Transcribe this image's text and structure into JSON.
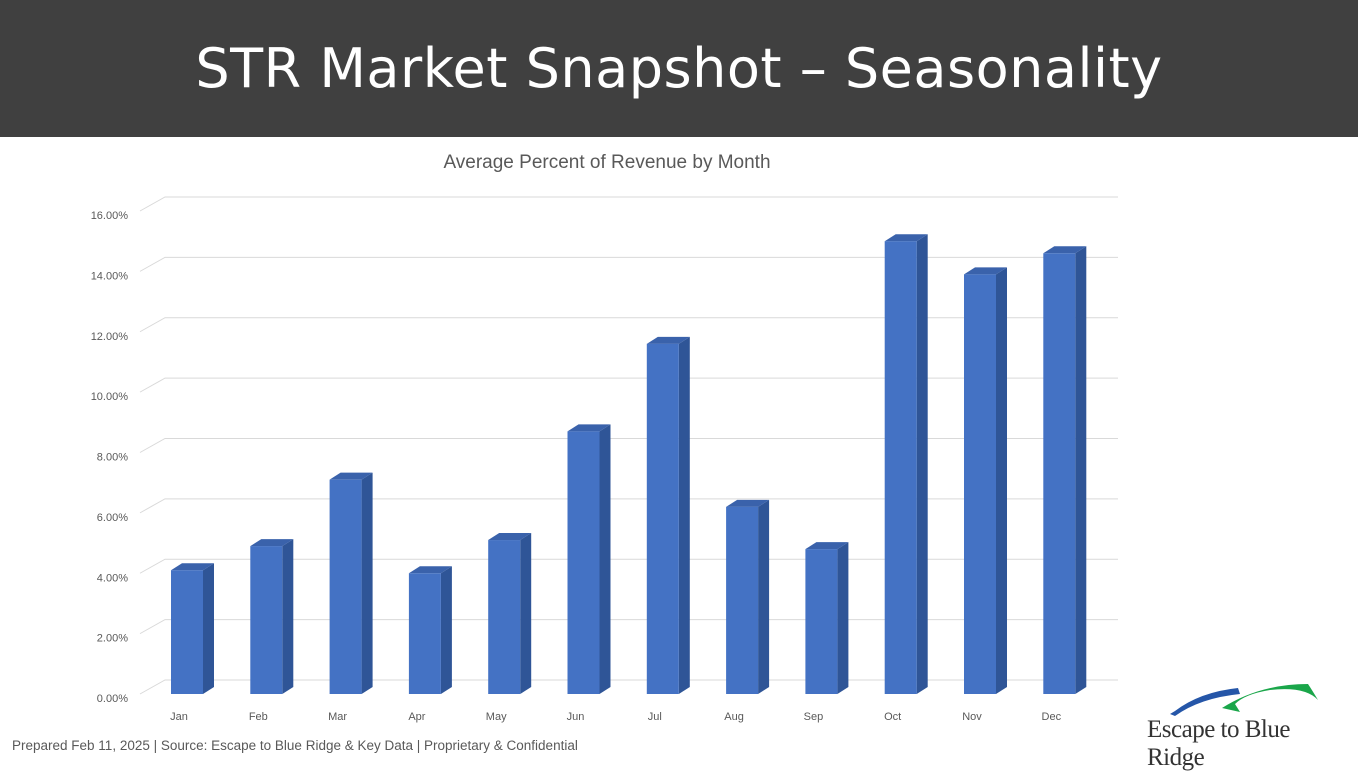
{
  "header": {
    "title": "STR Market Snapshot – Seasonality"
  },
  "footer": {
    "text": "Prepared Feb 11, 2025 | Source:  Escape to Blue Ridge & Key Data | Proprietary & Confidential"
  },
  "logo": {
    "text": "Escape to Blue Ridge",
    "colors": {
      "blue": "#2556a8",
      "green": "#1aa64a"
    }
  },
  "chart_data": {
    "type": "bar",
    "title": "Average Percent of Revenue by Month",
    "xlabel": "",
    "ylabel": "",
    "categories": [
      "Jan",
      "Feb",
      "Mar",
      "Apr",
      "May",
      "Jun",
      "Jul",
      "Aug",
      "Sep",
      "Oct",
      "Nov",
      "Dec"
    ],
    "values": [
      4.1,
      4.9,
      7.1,
      4.0,
      5.1,
      8.7,
      11.6,
      6.2,
      4.8,
      15.0,
      13.9,
      14.6
    ],
    "value_unit": "%",
    "ylim": [
      0,
      16
    ],
    "yticks": [
      "0.00%",
      "2.00%",
      "4.00%",
      "6.00%",
      "8.00%",
      "10.00%",
      "12.00%",
      "14.00%",
      "16.00%"
    ],
    "grid": true,
    "legend": "none",
    "bar_color": "#4472c4",
    "bar_side_color": "#2f5597",
    "bar_top_color": "#3a62ab"
  }
}
